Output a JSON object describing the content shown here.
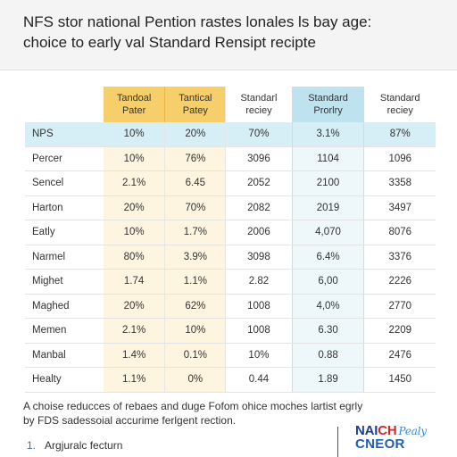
{
  "header": {
    "title_line1": "NFS stor national Pention rastes lonales ls bay age:",
    "title_line2": "choice to early val Standard Rensipt recipte"
  },
  "table": {
    "columns": [
      {
        "line1": "",
        "line2": ""
      },
      {
        "line1": "Tandoal",
        "line2": "Pater"
      },
      {
        "line1": "Tantical",
        "line2": "Patey"
      },
      {
        "line1": "Standarl",
        "line2": "reciey"
      },
      {
        "line1": "Standard",
        "line2": "Prorlry"
      },
      {
        "line1": "Standard",
        "line2": "reciey"
      }
    ],
    "rows": [
      {
        "label": "NPS",
        "cells": [
          "10%",
          "20%",
          "70%",
          "3.1%",
          "87%"
        ]
      },
      {
        "label": "Percer",
        "cells": [
          "10%",
          "76%",
          "3096",
          "1104",
          "1096"
        ]
      },
      {
        "label": "Sencel",
        "cells": [
          "2.1%",
          "6.45",
          "2052",
          "2100",
          "3358"
        ]
      },
      {
        "label": "Harton",
        "cells": [
          "20%",
          "70%",
          "2082",
          "2019",
          "3497"
        ]
      },
      {
        "label": "Eatly",
        "cells": [
          "10%",
          "1.7%",
          "2006",
          "4,070",
          "8076"
        ]
      },
      {
        "label": "Narmel",
        "cells": [
          "80%",
          "3.9%",
          "3098",
          "6.4%",
          "3376"
        ]
      },
      {
        "label": "Mighet",
        "cells": [
          "1.74",
          "1.1%",
          "2.82",
          "6,00",
          "2226"
        ]
      },
      {
        "label": "Maghed",
        "cells": [
          "20%",
          "62%",
          "1008",
          "4,0%",
          "2770"
        ]
      },
      {
        "label": "Memen",
        "cells": [
          "2.1%",
          "10%",
          "1008",
          "6.30",
          "2209"
        ]
      },
      {
        "label": "Manbal",
        "cells": [
          "1.4%",
          "0.1%",
          "10%",
          "0.88",
          "2476"
        ]
      },
      {
        "label": "Healty",
        "cells": [
          "1.1%",
          "0%",
          "0.44",
          "1.89",
          "1450"
        ]
      }
    ]
  },
  "notes": {
    "line1": "A choise reducces of rebaes and duge Fofom ohice moches lartist egrly",
    "line2": "by FDS sadessoial accurime ferlgent rection."
  },
  "list": [
    {
      "num": "1.",
      "text": "Argjuralc fecturn"
    }
  ],
  "logo": {
    "top_prefix": "NAI",
    "top_accent": "CH",
    "top_script": "Pealy",
    "bottom": "CNEOR"
  },
  "colors": {
    "header_yellow": "#f6cf6b",
    "header_blue": "#bfe3ee",
    "highlight_row": "#d6eef5",
    "logo_navy": "#1c3f8a",
    "logo_red": "#d22a2a"
  }
}
